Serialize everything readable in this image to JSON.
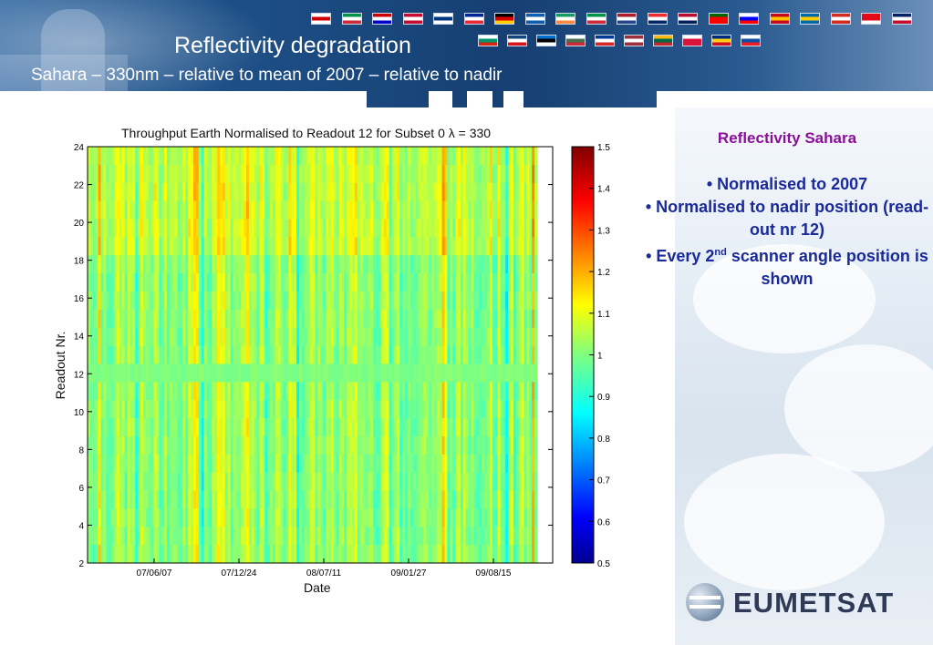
{
  "slide": {
    "title": "Reflectivity degradation",
    "subtitle": "Sahara – 330nm – relative to mean of 2007 – relative to nadir"
  },
  "side_panel": {
    "heading": "Reflectivity Sahara",
    "bullets": [
      {
        "prefix": "• Normalised to 2007",
        "sup": "",
        "suffix": ""
      },
      {
        "prefix": "• Normalised to nadir position (read-out nr 12)",
        "sup": "",
        "suffix": ""
      },
      {
        "prefix": "• Every 2",
        "sup": "nd",
        "suffix": " scanner angle position is shown"
      }
    ]
  },
  "logo": {
    "text": "EUMETSAT"
  },
  "colors": {
    "title_purple": "#8a0f9a",
    "bullet_blue": "#1a2a9a",
    "header_blue": "#1d4f86"
  },
  "chart_data": {
    "type": "heatmap",
    "title": "Throughput Earth Normalised to Readout 12 for Subset 0 λ = 330",
    "xlabel": "Date",
    "ylabel": "Readout Nr.",
    "x_tick_labels": [
      "07/06/07",
      "07/12/24",
      "08/07/11",
      "09/01/27",
      "09/08/15"
    ],
    "y_ticks": [
      2,
      4,
      6,
      8,
      10,
      12,
      14,
      16,
      18,
      20,
      22,
      24
    ],
    "ylim": [
      2,
      24
    ],
    "colorbar": {
      "ticks": [
        "1.5",
        "1.4",
        "1.3",
        "1.2",
        "1.1",
        "1",
        "0.9",
        "0.8",
        "0.7",
        "0.6",
        "0.5"
      ],
      "range": [
        0.5,
        1.5
      ],
      "colormap": "jet"
    },
    "typical_value_range": [
      0.95,
      1.25
    ],
    "grid": false
  }
}
